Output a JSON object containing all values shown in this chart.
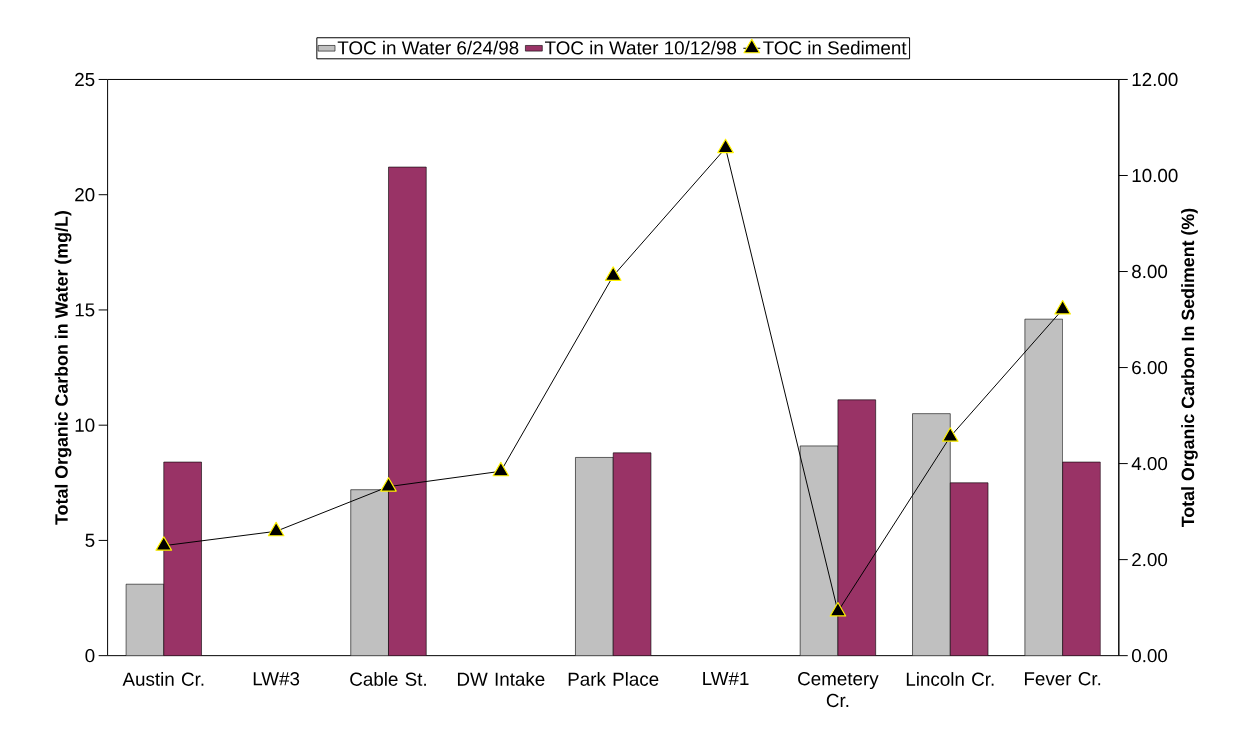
{
  "chart_data": {
    "type": "bar",
    "categories": [
      "Austin Cr.",
      "LW#3",
      "Cable St.",
      "DW Intake",
      "Park Place",
      "LW#1",
      "Cemetery Cr.",
      "Lincoln Cr.",
      "Fever Cr."
    ],
    "series": [
      {
        "name": "TOC in Water 6/24/98",
        "color": "#c0c0c0",
        "values": [
          3.1,
          null,
          7.2,
          null,
          8.6,
          null,
          9.1,
          10.5,
          14.6
        ]
      },
      {
        "name": "TOC in Water 10/12/98",
        "color": "#993366",
        "values": [
          8.4,
          null,
          21.2,
          null,
          8.8,
          null,
          11.1,
          7.5,
          8.4
        ]
      },
      {
        "name": "TOC in Sediment",
        "type": "line",
        "axis": "y2",
        "color": "#000000",
        "values": [
          2.29,
          2.59,
          3.52,
          3.84,
          7.91,
          10.57,
          0.92,
          4.56,
          7.21
        ]
      }
    ],
    "ylabel": "Total Organic Carbon in Water (mg/L)",
    "y2label": "Total Organic Carbon In Sediment (%)",
    "ylim": [
      0,
      25
    ],
    "yticks": [
      0,
      5,
      10,
      15,
      20,
      25
    ],
    "y2lim": [
      0,
      12
    ],
    "y2ticks": [
      {
        "value": 0,
        "label": "0.00"
      },
      {
        "value": 2,
        "label": "2.00"
      },
      {
        "value": 4,
        "label": "4.00"
      },
      {
        "value": 6,
        "label": "6.00"
      },
      {
        "value": 8,
        "label": "8.00"
      },
      {
        "value": 10,
        "label": "10.00"
      },
      {
        "value": 12,
        "label": "12.00"
      }
    ],
    "marker": "triangle",
    "legend": "top"
  }
}
